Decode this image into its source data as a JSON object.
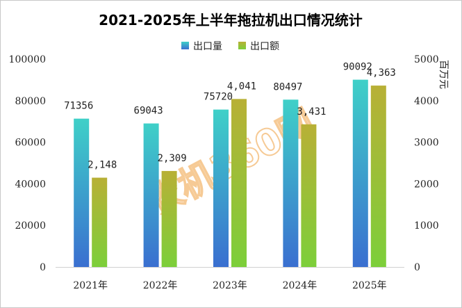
{
  "colors": {
    "qty_top": "#3fd0c8",
    "qty_bottom": "#3a6fd0",
    "val_top": "#b8b036",
    "val_bottom": "#7ccf3a",
    "watermark": "#f0a040",
    "frame": "#c8c8c8"
  },
  "watermark_text": "农机360网",
  "chart_data": {
    "type": "bar",
    "title": "2021-2025年上半年拖拉机出口情况统计",
    "categories": [
      "2021年",
      "2022年",
      "2023年",
      "2024年",
      "2025年"
    ],
    "series": [
      {
        "name": "出口量",
        "axis": "left",
        "values": [
          71356,
          69043,
          75720,
          80497,
          90092
        ],
        "labels": [
          "71356",
          "69043",
          "75720",
          "80497",
          "90092"
        ]
      },
      {
        "name": "出口额",
        "axis": "right",
        "values": [
          2148,
          2309,
          4041,
          3431,
          4363
        ],
        "labels": [
          "2,148",
          "2,309",
          "4,041",
          "3,431",
          "4,363"
        ]
      }
    ],
    "y_left": {
      "min": 0,
      "max": 100000,
      "ticks": [
        "0",
        "20000",
        "40000",
        "60000",
        "80000",
        "100000"
      ]
    },
    "y_right": {
      "min": 0,
      "max": 5000,
      "ticks": [
        "0",
        "1000",
        "2000",
        "3000",
        "4000",
        "5000"
      ],
      "label": "百万元"
    },
    "legend_position": "top-center",
    "grid": false
  }
}
